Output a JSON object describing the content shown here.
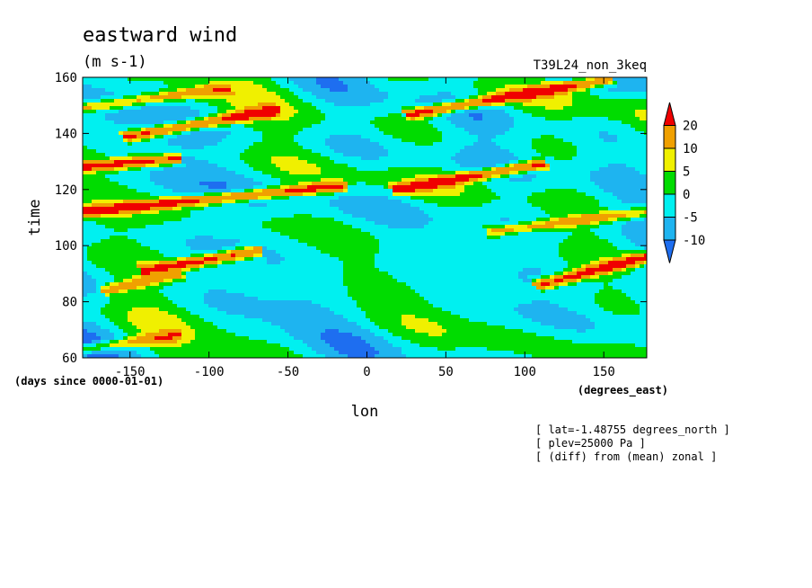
{
  "chart_data": {
    "type": "heatmap",
    "title": "eastward wind",
    "units": "(m s-1)",
    "experiment": "T39L24_non_3keq",
    "xlabel": "lon",
    "x_units": "(degrees_east)",
    "ylabel": "time",
    "y_units": "(days since 0000-01-01)",
    "xlim": [
      -180,
      177.2
    ],
    "ylim": [
      60,
      160
    ],
    "x_ticks": [
      -150,
      -100,
      -50,
      0,
      50,
      100,
      150
    ],
    "y_ticks": [
      60,
      80,
      100,
      120,
      140,
      160
    ],
    "x_tick_labels": [
      "-150",
      "-100",
      "-50",
      "0",
      "50",
      "100",
      "150"
    ],
    "y_tick_labels": [
      "60",
      "80",
      "100",
      "120",
      "140",
      "160"
    ],
    "grid": false,
    "legend": "right colorbar",
    "colorbar": {
      "levels": [
        -10,
        -5,
        0,
        5,
        10,
        20
      ],
      "labels": [
        "-10",
        "-5",
        "0",
        "5",
        "10",
        "20"
      ],
      "colors": [
        "#1e6ef0",
        "#1eb4f0",
        "#00f0f0",
        "#00dc00",
        "#f0f000",
        "#f0a000",
        "#f00000"
      ]
    },
    "streaks": [
      {
        "x0": -180,
        "t0": 63,
        "x1": -120,
        "t1": 68,
        "level": 10
      },
      {
        "x0": -165,
        "t0": 84,
        "x1": -120,
        "t1": 90,
        "level": 10
      },
      {
        "x0": -140,
        "t0": 91,
        "x1": -70,
        "t1": 98,
        "level": 20
      },
      {
        "x0": -180,
        "t0": 112,
        "x1": -20,
        "t1": 121,
        "level": 20
      },
      {
        "x0": -180,
        "t0": 128,
        "x1": -120,
        "t1": 131,
        "level": 20
      },
      {
        "x0": -150,
        "t0": 139,
        "x1": -60,
        "t1": 148,
        "level": 20
      },
      {
        "x0": 20,
        "t0": 120,
        "x1": 110,
        "t1": 129,
        "level": 20
      },
      {
        "x0": 80,
        "t0": 105,
        "x1": 177,
        "t1": 112,
        "level": 10
      },
      {
        "x0": 110,
        "t0": 86,
        "x1": 177,
        "t1": 96,
        "level": 20
      },
      {
        "x0": 30,
        "t0": 147,
        "x1": 150,
        "t1": 159,
        "level": 20
      },
      {
        "x0": -180,
        "t0": 149,
        "x1": -90,
        "t1": 156,
        "level": 10
      }
    ],
    "annotations": [
      "[ lat=-1.48755 degrees_north ]",
      "[ plev=25000 Pa ]",
      "[ (diff) from (mean) zonal ]"
    ]
  }
}
